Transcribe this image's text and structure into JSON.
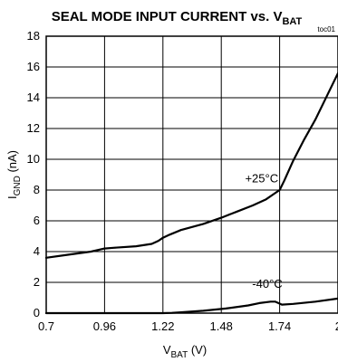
{
  "chart_data": {
    "type": "line",
    "title": {
      "main": "SEAL MODE INPUT CURRENT vs. V",
      "sub": "BAT"
    },
    "tag": "toc01",
    "xlabel": {
      "main": "V",
      "sub": "BAT",
      "unit": " (V)"
    },
    "ylabel": {
      "main": "I",
      "sub": "GND",
      "unit": " (nA)"
    },
    "xlim": [
      0.7,
      2.0
    ],
    "ylim": [
      0,
      18
    ],
    "xticks": [
      0.7,
      0.96,
      1.22,
      1.48,
      1.74,
      2.0
    ],
    "xtick_labels": [
      "0.7",
      "0.96",
      "1.22",
      "1.48",
      "1.74",
      "2"
    ],
    "yticks": [
      0,
      2,
      4,
      6,
      8,
      10,
      12,
      14,
      16,
      18
    ],
    "ytick_labels": [
      "0",
      "2",
      "4",
      "6",
      "8",
      "10",
      "12",
      "14",
      "16",
      "18"
    ],
    "grid": true,
    "legend": "none",
    "series": [
      {
        "name": "+25°C",
        "x": [
          0.7,
          0.8,
          0.9,
          0.96,
          1.0,
          1.1,
          1.17,
          1.2,
          1.22,
          1.25,
          1.3,
          1.4,
          1.48,
          1.55,
          1.62,
          1.68,
          1.72,
          1.74,
          1.76,
          1.8,
          1.85,
          1.9,
          1.95,
          2.0
        ],
        "y": [
          3.6,
          3.8,
          4.0,
          4.2,
          4.25,
          4.35,
          4.5,
          4.7,
          4.9,
          5.1,
          5.4,
          5.8,
          6.2,
          6.6,
          7.0,
          7.4,
          7.8,
          8.0,
          8.6,
          9.9,
          11.3,
          12.6,
          14.1,
          15.6
        ]
      },
      {
        "name": "-40°C",
        "x": [
          0.7,
          0.96,
          1.22,
          1.26,
          1.3,
          1.4,
          1.5,
          1.6,
          1.65,
          1.7,
          1.72,
          1.75,
          1.8,
          1.9,
          2.0
        ],
        "y": [
          0.0,
          0.0,
          0.0,
          0.02,
          0.05,
          0.15,
          0.3,
          0.5,
          0.65,
          0.75,
          0.75,
          0.55,
          0.6,
          0.75,
          0.95
        ]
      }
    ],
    "annotations": [
      {
        "text": "+25°C",
        "x": 1.66,
        "y": 8.5
      },
      {
        "text": "-40°C",
        "x": 1.685,
        "y": 1.65
      }
    ]
  }
}
